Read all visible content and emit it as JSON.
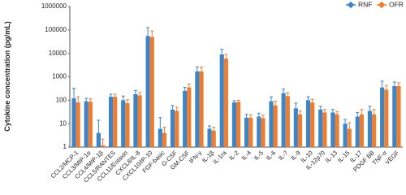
{
  "chart_data": {
    "type": "bar",
    "y_label": "Cytokine concentration (pg/mL)",
    "log_scale": true,
    "categories": [
      "CCL2/MCP-1",
      "CCL3/MIP-1α",
      "CCL4/MIP-1β",
      "CCL5/RANTES",
      "CCL11/Eotaxin",
      "CXCL8/IL-8",
      "CXCL10/IP-10",
      "FGF-basic",
      "G-CSF",
      "GM-CSF",
      "IFN-γ",
      "IL-1β",
      "IL-1ra",
      "IL-2",
      "IL-4",
      "IL-5",
      "IL-6",
      "IL-7",
      "IL-9",
      "IL-10",
      "IL-12p70",
      "IL-13",
      "IL-15",
      "IL-17",
      "PDGF BB",
      "TNF-α",
      "VEGF"
    ],
    "series": [
      {
        "name": "RNF",
        "color": "#3d85c6",
        "values": [
          120,
          90,
          4,
          140,
          100,
          180,
          55000,
          6,
          40,
          250,
          1700,
          6,
          9000,
          80,
          18,
          20,
          90,
          200,
          45,
          100,
          40,
          30,
          10,
          20,
          35,
          350,
          400
        ],
        "errors": [
          200,
          30,
          10,
          40,
          50,
          80,
          70000,
          12,
          20,
          100,
          900,
          2,
          6000,
          15,
          7,
          8,
          50,
          100,
          30,
          40,
          15,
          10,
          5,
          10,
          20,
          300,
          200
        ]
      },
      {
        "name": "OFR",
        "color": "#ed7d31",
        "values": [
          80,
          85,
          1.2,
          140,
          75,
          160,
          50000,
          4,
          35,
          350,
          1700,
          5,
          6000,
          85,
          18,
          17,
          60,
          150,
          25,
          80,
          30,
          25,
          6,
          25,
          25,
          280,
          400
        ],
        "errors": [
          60,
          30,
          1,
          40,
          30,
          50,
          40000,
          3,
          15,
          150,
          900,
          2,
          3000,
          15,
          6,
          6,
          30,
          60,
          10,
          30,
          10,
          8,
          5,
          15,
          15,
          150,
          150
        ]
      }
    ],
    "ylim": [
      1,
      1000000
    ],
    "yticks": [
      1,
      10,
      100,
      1000,
      10000,
      100000,
      1000000
    ],
    "legend": "top-right"
  }
}
